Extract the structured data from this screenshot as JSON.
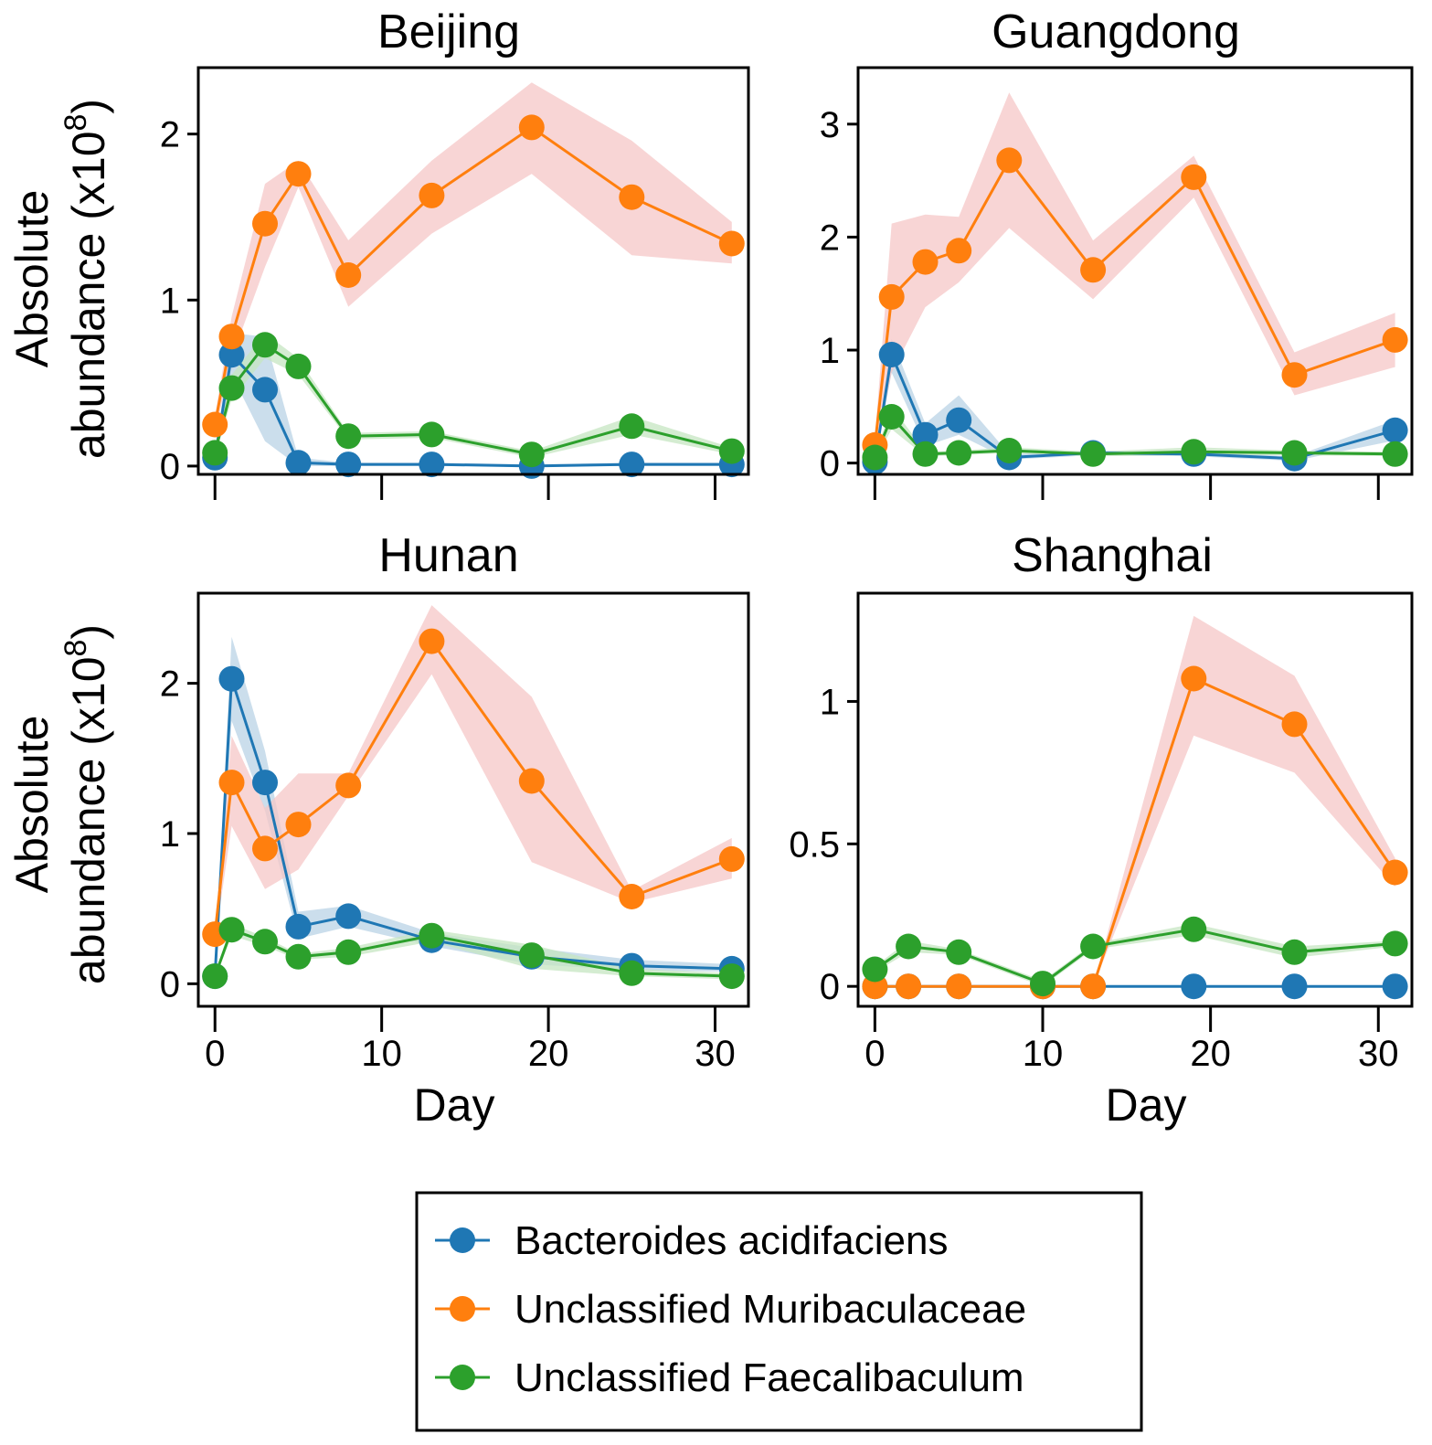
{
  "figure": {
    "ylabel_line1": "Absolute",
    "ylabel_line2_main": "abundance (x10",
    "ylabel_line2_exp": "8",
    "ylabel_line2_close": ")",
    "xlabel": "Day"
  },
  "legend": {
    "entries": [
      {
        "name": "Bacteroides acidifaciens",
        "color": "#1f77b4"
      },
      {
        "name": "Unclassified Muribaculaceae",
        "color": "#ff7f0e"
      },
      {
        "name": "Unclassified Faecalibaculum",
        "color": "#2ca02c"
      }
    ],
    "placement": "bottom-center"
  },
  "chart_data": [
    {
      "type": "line",
      "title": "Beijing",
      "xlim": [
        -1,
        32
      ],
      "ylim": [
        -0.05,
        2.4
      ],
      "xticks": [
        0,
        10,
        20,
        30
      ],
      "xtick_labels_shown": false,
      "yticks": [
        0,
        1,
        2
      ],
      "ytick_labels": [
        "0",
        "1",
        "2"
      ],
      "series": [
        {
          "name": "Bacteroides acidifaciens",
          "color": "#1f77b4",
          "x": [
            0,
            1,
            3,
            5,
            8,
            13,
            19,
            25,
            31
          ],
          "y": [
            0.05,
            0.67,
            0.46,
            0.02,
            0.01,
            0.01,
            0.0,
            0.01,
            0.01
          ],
          "lower": [
            0.03,
            0.55,
            0.15,
            0.0,
            0.0,
            0.0,
            0.0,
            0.0,
            0.0
          ],
          "upper": [
            0.08,
            0.8,
            0.78,
            0.05,
            0.02,
            0.02,
            0.01,
            0.02,
            0.02
          ]
        },
        {
          "name": "Unclassified Muribaculaceae",
          "color": "#ff7f0e",
          "x": [
            0,
            1,
            3,
            5,
            8,
            13,
            19,
            25,
            31
          ],
          "y": [
            0.25,
            0.78,
            1.46,
            1.76,
            1.15,
            1.63,
            2.04,
            1.62,
            1.34
          ],
          "lower": [
            0.2,
            0.65,
            1.2,
            1.68,
            0.96,
            1.4,
            1.76,
            1.27,
            1.22
          ],
          "upper": [
            0.3,
            0.9,
            1.7,
            1.84,
            1.36,
            1.84,
            2.31,
            1.96,
            1.47
          ]
        },
        {
          "name": "Unclassified Faecalibaculum",
          "color": "#2ca02c",
          "x": [
            0,
            1,
            3,
            5,
            8,
            13,
            19,
            25,
            31
          ],
          "y": [
            0.08,
            0.47,
            0.73,
            0.6,
            0.18,
            0.19,
            0.07,
            0.24,
            0.09
          ],
          "lower": [
            0.06,
            0.4,
            0.65,
            0.55,
            0.16,
            0.17,
            0.05,
            0.19,
            0.07
          ],
          "upper": [
            0.1,
            0.55,
            0.8,
            0.65,
            0.2,
            0.21,
            0.09,
            0.3,
            0.11
          ]
        }
      ]
    },
    {
      "type": "line",
      "title": "Guangdong",
      "xlim": [
        -1,
        32
      ],
      "ylim": [
        -0.1,
        3.5
      ],
      "xticks": [
        0,
        10,
        20,
        30
      ],
      "xtick_labels_shown": false,
      "yticks": [
        0,
        1,
        2,
        3
      ],
      "ytick_labels": [
        "0",
        "1",
        "2",
        "3"
      ],
      "series": [
        {
          "name": "Bacteroides acidifaciens",
          "color": "#1f77b4",
          "x": [
            0,
            1,
            3,
            5,
            8,
            13,
            19,
            25,
            31
          ],
          "y": [
            0.01,
            0.96,
            0.25,
            0.38,
            0.05,
            0.09,
            0.08,
            0.04,
            0.29
          ],
          "lower": [
            0.0,
            0.8,
            0.15,
            0.25,
            0.03,
            0.07,
            0.06,
            0.02,
            0.2
          ],
          "upper": [
            0.02,
            1.1,
            0.35,
            0.6,
            0.08,
            0.11,
            0.1,
            0.06,
            0.38
          ]
        },
        {
          "name": "Unclassified Muribaculaceae",
          "color": "#ff7f0e",
          "x": [
            0,
            1,
            3,
            5,
            8,
            13,
            19,
            25,
            31
          ],
          "y": [
            0.16,
            1.47,
            1.78,
            1.88,
            2.68,
            1.71,
            2.53,
            0.78,
            1.09
          ],
          "lower": [
            0.1,
            0.8,
            1.38,
            1.6,
            2.08,
            1.45,
            2.35,
            0.6,
            0.85
          ],
          "upper": [
            0.22,
            2.12,
            2.2,
            2.18,
            3.28,
            1.97,
            2.72,
            0.98,
            1.33
          ]
        },
        {
          "name": "Unclassified Faecalibaculum",
          "color": "#2ca02c",
          "x": [
            0,
            1,
            3,
            5,
            8,
            13,
            19,
            25,
            31
          ],
          "y": [
            0.05,
            0.41,
            0.08,
            0.09,
            0.11,
            0.08,
            0.1,
            0.09,
            0.08
          ],
          "lower": [
            0.03,
            0.3,
            0.06,
            0.07,
            0.09,
            0.06,
            0.07,
            0.07,
            0.06
          ],
          "upper": [
            0.07,
            0.5,
            0.1,
            0.11,
            0.14,
            0.1,
            0.14,
            0.11,
            0.1
          ]
        }
      ]
    },
    {
      "type": "line",
      "title": "Hunan",
      "xlim": [
        -1,
        32
      ],
      "ylim": [
        -0.15,
        2.6
      ],
      "xticks": [
        0,
        10,
        20,
        30
      ],
      "xtick_labels_shown": true,
      "xtick_labels": [
        "0",
        "10",
        "20",
        "30"
      ],
      "yticks": [
        0,
        1,
        2
      ],
      "ytick_labels": [
        "0",
        "1",
        "2"
      ],
      "xlabel": "Day",
      "series": [
        {
          "name": "Bacteroides acidifaciens",
          "color": "#1f77b4",
          "x": [
            0,
            1,
            3,
            5,
            8,
            13,
            19,
            25,
            31
          ],
          "y": [
            0.05,
            2.03,
            1.34,
            0.38,
            0.45,
            0.29,
            0.18,
            0.12,
            0.1
          ],
          "lower": [
            0.03,
            1.75,
            1.15,
            0.3,
            0.38,
            0.25,
            0.13,
            0.09,
            0.08
          ],
          "upper": [
            0.07,
            2.31,
            1.55,
            0.48,
            0.52,
            0.34,
            0.24,
            0.16,
            0.13
          ]
        },
        {
          "name": "Unclassified Muribaculaceae",
          "color": "#ff7f0e",
          "x": [
            0,
            1,
            3,
            5,
            8,
            13,
            19,
            25,
            31
          ],
          "y": [
            0.33,
            1.34,
            0.9,
            1.06,
            1.32,
            2.28,
            1.35,
            0.58,
            0.83
          ],
          "lower": [
            0.28,
            1.05,
            0.63,
            0.76,
            1.25,
            2.06,
            0.81,
            0.54,
            0.7
          ],
          "upper": [
            0.38,
            1.65,
            1.17,
            1.4,
            1.4,
            2.52,
            1.91,
            0.62,
            0.97
          ]
        },
        {
          "name": "Unclassified Faecalibaculum",
          "color": "#2ca02c",
          "x": [
            0,
            1,
            3,
            5,
            8,
            13,
            19,
            25,
            31
          ],
          "y": [
            0.05,
            0.36,
            0.28,
            0.18,
            0.21,
            0.32,
            0.19,
            0.07,
            0.05
          ],
          "lower": [
            0.03,
            0.32,
            0.25,
            0.16,
            0.18,
            0.28,
            0.1,
            0.05,
            0.03
          ],
          "upper": [
            0.07,
            0.4,
            0.31,
            0.2,
            0.24,
            0.36,
            0.26,
            0.1,
            0.07
          ]
        }
      ]
    },
    {
      "type": "line",
      "title": "Shanghai",
      "xlim": [
        -1,
        32
      ],
      "ylim": [
        -0.07,
        1.38
      ],
      "xticks": [
        0,
        10,
        20,
        30
      ],
      "xtick_labels_shown": true,
      "xtick_labels": [
        "0",
        "10",
        "20",
        "30"
      ],
      "yticks": [
        0,
        0.5,
        1
      ],
      "ytick_labels": [
        "0",
        "0.5",
        "1"
      ],
      "xlabel": "Day",
      "series": [
        {
          "name": "Bacteroides acidifaciens",
          "color": "#1f77b4",
          "x": [
            0,
            2,
            5,
            10,
            13,
            19,
            25,
            31
          ],
          "y": [
            0.0,
            0.0,
            0.0,
            0.0,
            0.0,
            0.0,
            0.0,
            0.0
          ],
          "lower": [
            0.0,
            0.0,
            0.0,
            0.0,
            0.0,
            0.0,
            0.0,
            0.0
          ],
          "upper": [
            0.0,
            0.0,
            0.0,
            0.0,
            0.0,
            0.0,
            0.0,
            0.0
          ]
        },
        {
          "name": "Unclassified Muribaculaceae",
          "color": "#ff7f0e",
          "x": [
            0,
            2,
            5,
            10,
            13,
            19,
            25,
            31
          ],
          "y": [
            0.0,
            0.0,
            0.0,
            0.0,
            0.0,
            1.08,
            0.92,
            0.4
          ],
          "lower": [
            0.0,
            0.0,
            0.0,
            0.0,
            0.0,
            0.88,
            0.75,
            0.35
          ],
          "upper": [
            0.0,
            0.0,
            0.0,
            0.0,
            0.0,
            1.3,
            1.09,
            0.45
          ]
        },
        {
          "name": "Unclassified Faecalibaculum",
          "color": "#2ca02c",
          "x": [
            0,
            2,
            5,
            10,
            13,
            19,
            25,
            31
          ],
          "y": [
            0.06,
            0.14,
            0.12,
            0.01,
            0.14,
            0.2,
            0.12,
            0.15
          ],
          "lower": [
            0.05,
            0.12,
            0.11,
            0.0,
            0.13,
            0.18,
            0.1,
            0.14
          ],
          "upper": [
            0.07,
            0.16,
            0.13,
            0.02,
            0.15,
            0.22,
            0.14,
            0.16
          ]
        }
      ]
    }
  ]
}
